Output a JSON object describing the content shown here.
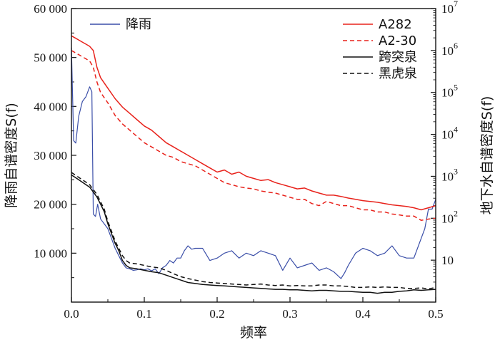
{
  "chart_data": {
    "type": "line",
    "xlabel": "频率",
    "ylabel_left": "降雨自谱密度S(f)",
    "ylabel_right": "地下水自谱密度S(f)",
    "x_range": [
      0,
      0.5
    ],
    "left_y_range": [
      0,
      60000
    ],
    "right_y_range_log10": [
      0,
      7
    ],
    "right_scale": "log",
    "x_ticks": [
      "0.0",
      "0.1",
      "0.2",
      "0.3",
      "0.4",
      "0.5"
    ],
    "x_tick_values": [
      0,
      0.1,
      0.2,
      0.3,
      0.4,
      0.5
    ],
    "left_ticks": [
      "10 000",
      "20 000",
      "30 000",
      "40 000",
      "50 000",
      "60 000"
    ],
    "left_tick_values": [
      10000,
      20000,
      30000,
      40000,
      50000,
      60000
    ],
    "right_ticks": [
      {
        "base": "10",
        "exp": "",
        "log": 1
      },
      {
        "base": "10",
        "exp": "2",
        "log": 2
      },
      {
        "base": "10",
        "exp": "3",
        "log": 3
      },
      {
        "base": "10",
        "exp": "4",
        "log": 4
      },
      {
        "base": "10",
        "exp": "5",
        "log": 5
      },
      {
        "base": "10",
        "exp": "6",
        "log": 6
      },
      {
        "base": "10",
        "exp": "7",
        "log": 7
      }
    ],
    "legend_position": "top-right",
    "series": [
      {
        "name": "降雨",
        "axis": "left",
        "color": "#3a4ea8",
        "dash": "solid",
        "x": [
          0,
          0.003,
          0.006,
          0.01,
          0.015,
          0.02,
          0.025,
          0.028,
          0.03,
          0.033,
          0.036,
          0.04,
          0.045,
          0.05,
          0.055,
          0.06,
          0.065,
          0.07,
          0.075,
          0.08,
          0.085,
          0.09,
          0.095,
          0.1,
          0.105,
          0.11,
          0.115,
          0.12,
          0.125,
          0.13,
          0.135,
          0.14,
          0.145,
          0.15,
          0.155,
          0.16,
          0.165,
          0.17,
          0.18,
          0.19,
          0.2,
          0.21,
          0.22,
          0.23,
          0.24,
          0.25,
          0.26,
          0.27,
          0.28,
          0.29,
          0.3,
          0.31,
          0.32,
          0.33,
          0.34,
          0.35,
          0.36,
          0.365,
          0.37,
          0.375,
          0.38,
          0.39,
          0.4,
          0.41,
          0.42,
          0.43,
          0.44,
          0.45,
          0.46,
          0.47,
          0.475,
          0.48,
          0.485,
          0.49,
          0.495,
          0.5
        ],
        "values": [
          52000,
          33000,
          32500,
          38000,
          41000,
          42000,
          44000,
          43000,
          18000,
          17500,
          20000,
          17000,
          16000,
          15000,
          13000,
          11000,
          9500,
          8000,
          7000,
          6800,
          6500,
          6600,
          6800,
          6600,
          6800,
          6400,
          6800,
          5800,
          7000,
          7500,
          8500,
          8000,
          9000,
          9000,
          10500,
          11500,
          10800,
          11000,
          11000,
          8500,
          9000,
          10000,
          10500,
          9000,
          10000,
          9500,
          10500,
          10000,
          9500,
          6500,
          9000,
          7000,
          7500,
          8000,
          6500,
          7000,
          6200,
          5500,
          4800,
          6000,
          7500,
          10000,
          11000,
          10500,
          9500,
          10000,
          11500,
          9500,
          9000,
          9000,
          11000,
          13000,
          15000,
          19000,
          19000,
          21000
        ]
      },
      {
        "name": "A282",
        "axis": "right",
        "color": "#e8221b",
        "dash": "solid",
        "x": [
          0,
          0.005,
          0.01,
          0.015,
          0.02,
          0.025,
          0.03,
          0.035,
          0.04,
          0.05,
          0.06,
          0.07,
          0.08,
          0.09,
          0.1,
          0.11,
          0.12,
          0.13,
          0.14,
          0.15,
          0.16,
          0.17,
          0.18,
          0.19,
          0.2,
          0.21,
          0.22,
          0.23,
          0.24,
          0.25,
          0.26,
          0.27,
          0.28,
          0.29,
          0.3,
          0.31,
          0.32,
          0.33,
          0.34,
          0.35,
          0.36,
          0.37,
          0.38,
          0.39,
          0.4,
          0.41,
          0.42,
          0.43,
          0.44,
          0.45,
          0.46,
          0.47,
          0.48,
          0.49,
          0.5
        ],
        "log10_values": [
          6.35,
          6.3,
          6.25,
          6.2,
          6.15,
          6.1,
          6.0,
          5.6,
          5.35,
          5.1,
          4.85,
          4.65,
          4.5,
          4.35,
          4.2,
          4.1,
          3.95,
          3.8,
          3.7,
          3.6,
          3.5,
          3.4,
          3.3,
          3.2,
          3.1,
          3.15,
          3.05,
          3.1,
          3.0,
          2.95,
          2.9,
          2.92,
          2.85,
          2.8,
          2.75,
          2.7,
          2.72,
          2.65,
          2.6,
          2.55,
          2.55,
          2.52,
          2.48,
          2.45,
          2.42,
          2.4,
          2.38,
          2.35,
          2.32,
          2.3,
          2.28,
          2.25,
          2.2,
          2.25,
          2.3
        ]
      },
      {
        "name": "A2-30",
        "axis": "right",
        "color": "#e8221b",
        "dash": "dashed",
        "x": [
          0,
          0.005,
          0.01,
          0.015,
          0.02,
          0.025,
          0.03,
          0.035,
          0.04,
          0.05,
          0.06,
          0.07,
          0.08,
          0.09,
          0.1,
          0.11,
          0.12,
          0.13,
          0.14,
          0.15,
          0.16,
          0.17,
          0.18,
          0.19,
          0.2,
          0.21,
          0.22,
          0.23,
          0.24,
          0.25,
          0.26,
          0.27,
          0.28,
          0.29,
          0.3,
          0.31,
          0.32,
          0.33,
          0.34,
          0.35,
          0.36,
          0.37,
          0.38,
          0.39,
          0.4,
          0.41,
          0.42,
          0.43,
          0.44,
          0.45,
          0.46,
          0.47,
          0.48,
          0.49,
          0.5
        ],
        "log10_values": [
          6.0,
          5.95,
          5.9,
          5.85,
          5.8,
          5.75,
          5.6,
          5.25,
          5.0,
          4.75,
          4.45,
          4.25,
          4.1,
          3.95,
          3.8,
          3.7,
          3.6,
          3.5,
          3.45,
          3.35,
          3.3,
          3.25,
          3.15,
          3.05,
          2.95,
          2.85,
          2.8,
          2.75,
          2.72,
          2.7,
          2.65,
          2.62,
          2.6,
          2.55,
          2.5,
          2.45,
          2.45,
          2.35,
          2.3,
          2.4,
          2.35,
          2.3,
          2.3,
          2.25,
          2.2,
          2.2,
          2.15,
          2.15,
          2.1,
          2.08,
          2.05,
          2.05,
          1.95,
          1.98,
          2.0
        ]
      },
      {
        "name": "跨突泉",
        "axis": "left",
        "color": "#111111",
        "dash": "solid",
        "x": [
          0,
          0.005,
          0.01,
          0.015,
          0.02,
          0.025,
          0.03,
          0.035,
          0.04,
          0.045,
          0.05,
          0.055,
          0.06,
          0.065,
          0.07,
          0.075,
          0.08,
          0.09,
          0.1,
          0.11,
          0.12,
          0.13,
          0.14,
          0.15,
          0.16,
          0.17,
          0.18,
          0.19,
          0.2,
          0.21,
          0.22,
          0.23,
          0.24,
          0.25,
          0.26,
          0.27,
          0.28,
          0.29,
          0.3,
          0.31,
          0.32,
          0.33,
          0.34,
          0.35,
          0.36,
          0.37,
          0.38,
          0.39,
          0.4,
          0.41,
          0.42,
          0.43,
          0.44,
          0.45,
          0.46,
          0.47,
          0.48,
          0.49,
          0.5
        ],
        "values": [
          26000,
          25500,
          25000,
          24500,
          24000,
          23500,
          22500,
          21500,
          20000,
          18500,
          16000,
          14000,
          12000,
          10500,
          8500,
          7500,
          7000,
          6800,
          6500,
          6200,
          6000,
          5500,
          5000,
          4500,
          4000,
          3800,
          3600,
          3500,
          3400,
          3300,
          3200,
          3100,
          3000,
          2900,
          2800,
          2700,
          2600,
          2600,
          2500,
          2500,
          2400,
          2300,
          2400,
          2400,
          2300,
          2200,
          2200,
          2100,
          2000,
          2000,
          1800,
          2000,
          2000,
          2200,
          2300,
          2500,
          2400,
          2500,
          2600
        ]
      },
      {
        "name": "黑虎泉",
        "axis": "left",
        "color": "#111111",
        "dash": "dashed",
        "x": [
          0,
          0.005,
          0.01,
          0.015,
          0.02,
          0.025,
          0.03,
          0.035,
          0.04,
          0.045,
          0.05,
          0.055,
          0.06,
          0.065,
          0.07,
          0.075,
          0.08,
          0.09,
          0.1,
          0.11,
          0.12,
          0.13,
          0.14,
          0.15,
          0.16,
          0.17,
          0.18,
          0.19,
          0.2,
          0.21,
          0.22,
          0.23,
          0.24,
          0.25,
          0.26,
          0.27,
          0.28,
          0.29,
          0.3,
          0.31,
          0.32,
          0.33,
          0.34,
          0.35,
          0.36,
          0.37,
          0.38,
          0.39,
          0.4,
          0.41,
          0.42,
          0.43,
          0.44,
          0.45,
          0.46,
          0.47,
          0.48,
          0.49,
          0.5
        ],
        "values": [
          26500,
          26000,
          25500,
          25000,
          24500,
          24000,
          23000,
          22000,
          20500,
          19000,
          16500,
          14500,
          12500,
          11000,
          9500,
          8500,
          8000,
          7800,
          7500,
          7200,
          7000,
          6500,
          5800,
          5200,
          4800,
          4500,
          4200,
          4000,
          3900,
          3800,
          3700,
          3600,
          3500,
          3600,
          3700,
          3500,
          3400,
          3500,
          3300,
          3400,
          3300,
          3300,
          3500,
          3500,
          3300,
          3300,
          3200,
          3000,
          3000,
          3100,
          3000,
          3100,
          3000,
          3000,
          2800,
          2800,
          2900,
          2700,
          3000
        ]
      }
    ]
  }
}
